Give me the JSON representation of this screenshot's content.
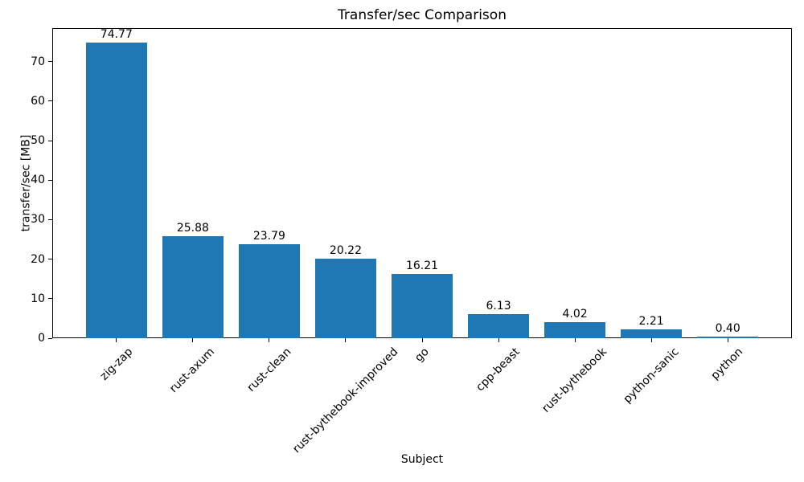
{
  "chart_data": {
    "type": "bar",
    "title": "Transfer/sec Comparison",
    "xlabel": "Subject",
    "ylabel": "transfer/sec [MB]",
    "categories": [
      "zig-zap",
      "rust-axum",
      "rust-clean",
      "rust-bythebook-improved",
      "go",
      "cpp-beast",
      "rust-bythebook",
      "python-sanic",
      "python"
    ],
    "values": [
      74.77,
      25.88,
      23.79,
      20.22,
      16.21,
      6.13,
      4.02,
      2.21,
      0.4
    ],
    "value_labels": [
      "74.77",
      "25.88",
      "23.79",
      "20.22",
      "16.21",
      "6.13",
      "4.02",
      "2.21",
      "0.40"
    ],
    "yticks": [
      0,
      10,
      20,
      30,
      40,
      50,
      60,
      70
    ],
    "ylim": [
      0,
      78.5
    ],
    "bar_color": "#1f77b4",
    "axis_color": "#000000",
    "text_color": "#000000",
    "background_color": "#ffffff",
    "grid": false,
    "legend": null,
    "x_tick_rotation_deg": 45
  }
}
